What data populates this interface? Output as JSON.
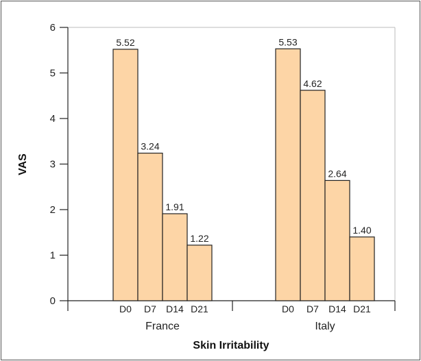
{
  "chart_data": {
    "type": "bar",
    "title": "",
    "xlabel": "Skin Irritability",
    "ylabel": "VAS",
    "ylim": [
      0,
      6
    ],
    "yticks": [
      "0",
      "1",
      "2",
      "3",
      "4",
      "5",
      "6"
    ],
    "grid": false,
    "legend": "none",
    "groups": [
      {
        "name": "France",
        "categories": [
          "D0",
          "D7",
          "D14",
          "D21"
        ],
        "values": [
          5.52,
          3.24,
          1.91,
          1.22
        ],
        "value_labels": [
          "5.52",
          "3.24",
          "1.91",
          "1.22"
        ]
      },
      {
        "name": "Italy",
        "categories": [
          "D0",
          "D7",
          "D14",
          "D21"
        ],
        "values": [
          5.53,
          4.62,
          2.64,
          1.4
        ],
        "value_labels": [
          "5.53",
          "4.62",
          "2.64",
          "1.40"
        ]
      }
    ],
    "colors": {
      "bar_fill": "#fdd5a6",
      "bar_stroke": "#222222",
      "axis": "#222222"
    }
  }
}
